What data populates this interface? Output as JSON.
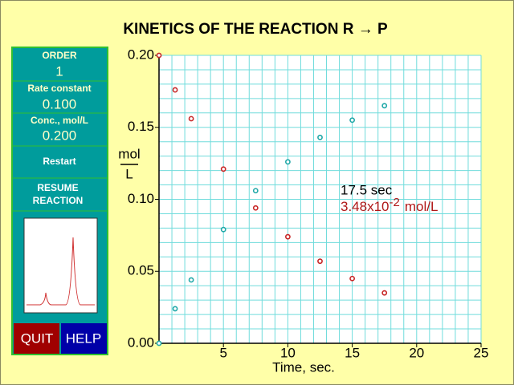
{
  "chart_data": {
    "type": "scatter",
    "title": "KINETICS OF THE REACTION R → P",
    "x_label": "Time, sec.",
    "y_label_top": "mol",
    "y_label_bottom": "L",
    "x": [
      0,
      1.25,
      2.5,
      5,
      7.5,
      10,
      12.5,
      15,
      17.5
    ],
    "series": [
      {
        "name": "R",
        "color": "#c82828",
        "values": [
          0.2,
          0.176,
          0.156,
          0.121,
          0.094,
          0.074,
          0.057,
          0.045,
          0.035
        ]
      },
      {
        "name": "P",
        "color": "#20a8a8",
        "values": [
          0,
          0.024,
          0.044,
          0.079,
          0.106,
          0.126,
          0.143,
          0.155,
          0.165
        ]
      }
    ],
    "xlim": [
      0,
      25
    ],
    "xticks": [
      5,
      10,
      15,
      20,
      25
    ],
    "ylim": [
      0,
      0.2
    ],
    "yticks": [
      {
        "value": 0,
        "label": "0.00"
      },
      {
        "value": 0.05,
        "label": "0.05"
      },
      {
        "value": 0.1,
        "label": "0.10"
      },
      {
        "value": 0.15,
        "label": "0.15"
      },
      {
        "value": 0.2,
        "label": "0.20"
      }
    ],
    "grid": true,
    "annotation": {
      "time": "17.5 sec",
      "conc_mantissa": "3.48x10",
      "conc_exponent": "-2",
      "conc_unit": "mol/L"
    }
  },
  "panel": {
    "order_label": "ORDER",
    "order_value": "1",
    "rate_label": "Rate constant",
    "rate_value": "0.100",
    "conc_label": "Conc., mol/L",
    "conc_value": "0.200",
    "restart": "Restart",
    "resume": [
      "RESUME",
      "REACTION"
    ],
    "quit": "QUIT",
    "help": "HELP"
  }
}
